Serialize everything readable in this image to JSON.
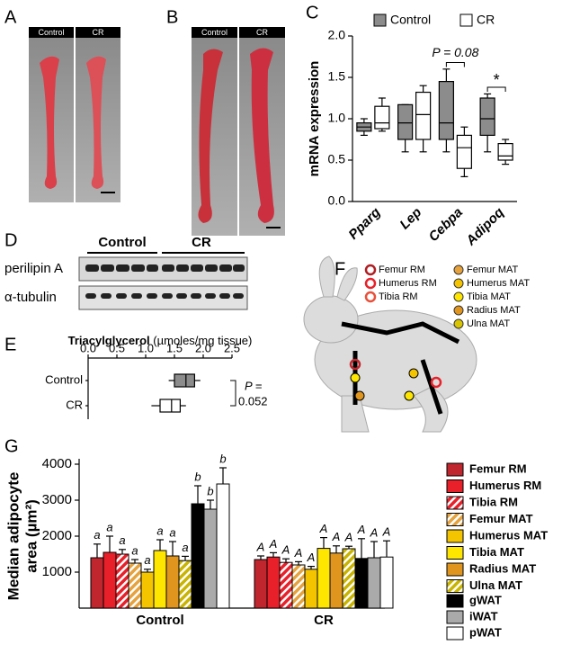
{
  "panel_labels": [
    "A",
    "B",
    "C",
    "D",
    "E",
    "F",
    "G"
  ],
  "photos": {
    "A": [
      "Control",
      "CR"
    ],
    "B": [
      "Control",
      "CR"
    ]
  },
  "blot": {
    "groups": [
      "Control",
      "CR"
    ],
    "rows": [
      "perilipin A",
      "α-tubulin"
    ]
  },
  "skeleton_legend": [
    {
      "name": "Femur RM",
      "color": "#b01e23"
    },
    {
      "name": "Humerus RM",
      "color": "#e8202a"
    },
    {
      "name": "Tibia RM",
      "color": "#e8503a"
    },
    {
      "name": "Femur MAT",
      "color": "#e6a23c"
    },
    {
      "name": "Humerus MAT",
      "color": "#f5c400"
    },
    {
      "name": "Tibia MAT",
      "color": "#ffe600"
    },
    {
      "name": "Radius MAT",
      "color": "#e0961e"
    },
    {
      "name": "Ulna MAT",
      "color": "#d9c400"
    }
  ],
  "chart_data": [
    {
      "type": "box",
      "ylabel": "mRNA expression",
      "categories": [
        "Pparg",
        "Lep",
        "Cebpa",
        "Adipoq"
      ],
      "series": [
        {
          "name": "Control",
          "color": "#8c8c8c",
          "min": [
            0.8,
            0.6,
            0.6,
            0.6
          ],
          "q1": [
            0.85,
            0.75,
            0.75,
            0.8
          ],
          "median": [
            0.9,
            0.95,
            0.95,
            1.0
          ],
          "q3": [
            0.95,
            1.17,
            1.45,
            1.25
          ],
          "max": [
            1.0,
            1.17,
            1.6,
            1.3
          ]
        },
        {
          "name": "CR",
          "color": "#ffffff",
          "min": [
            0.85,
            0.6,
            0.3,
            0.45
          ],
          "q1": [
            0.88,
            0.75,
            0.4,
            0.5
          ],
          "median": [
            0.95,
            1.05,
            0.65,
            0.55
          ],
          "q3": [
            1.15,
            1.32,
            0.8,
            0.7
          ],
          "max": [
            1.25,
            1.4,
            0.9,
            0.75
          ]
        }
      ],
      "ylim": [
        0,
        2
      ],
      "yticks": [
        {
          "value": 0,
          "label": "0.0"
        },
        0.5,
        {
          "value": 1,
          "label": "1.0"
        },
        1.5,
        {
          "value": 2,
          "label": "2.0"
        }
      ],
      "annotations": [
        "P = 0.08",
        "*"
      ]
    },
    {
      "type": "hbox",
      "title": "Triacylglycerol",
      "title_unit": "(µmoles/mg tissue)",
      "categories": [
        "Control",
        "CR"
      ],
      "colors": [
        "#8c8c8c",
        "#ffffff"
      ],
      "min": [
        1.4,
        1.1
      ],
      "q1": [
        1.5,
        1.25
      ],
      "median": [
        1.7,
        1.45
      ],
      "q3": [
        1.85,
        1.6
      ],
      "max": [
        1.95,
        1.7
      ],
      "xlim": [
        0,
        2.5
      ],
      "xticks": [
        {
          "value": 0,
          "label": "0.0"
        },
        0.5,
        {
          "value": 1,
          "label": "1.0"
        },
        1.5,
        {
          "value": 2,
          "label": "2.0"
        },
        2.5
      ],
      "annotations": [
        "P =",
        "0.052"
      ]
    },
    {
      "type": "bar",
      "ylabel": [
        "Median adipocyte",
        "area (µm²)"
      ],
      "categories": [
        "Control",
        "CR"
      ],
      "series": [
        {
          "name": "Femur RM",
          "color": "#c0262d",
          "hatched": false,
          "values": [
            1400,
            1350
          ],
          "errors": [
            380,
            100
          ],
          "letters": [
            "a",
            "A"
          ]
        },
        {
          "name": "Humerus RM",
          "color": "#e8202a",
          "hatched": false,
          "values": [
            1550,
            1420
          ],
          "errors": [
            450,
            120
          ],
          "letters": [
            "a",
            "A"
          ]
        },
        {
          "name": "Tibia RM",
          "color": "#e8202a",
          "hatched": true,
          "values": [
            1500,
            1270
          ],
          "errors": [
            130,
            100
          ],
          "letters": [
            "a",
            "A"
          ]
        },
        {
          "name": "Femur MAT",
          "color": "#e6a23c",
          "hatched": true,
          "values": [
            1250,
            1200
          ],
          "errors": [
            100,
            90
          ],
          "letters": [
            "a",
            "A"
          ]
        },
        {
          "name": "Humerus MAT",
          "color": "#f5c400",
          "hatched": false,
          "values": [
            1000,
            1080
          ],
          "errors": [
            80,
            80
          ],
          "letters": [
            "a",
            "A"
          ]
        },
        {
          "name": "Tibia MAT",
          "color": "#ffe600",
          "hatched": false,
          "values": [
            1600,
            1660
          ],
          "errors": [
            300,
            300
          ],
          "letters": [
            "a",
            "A"
          ]
        },
        {
          "name": "Radius MAT",
          "color": "#e0961e",
          "hatched": false,
          "values": [
            1450,
            1530
          ],
          "errors": [
            400,
            200
          ],
          "letters": [
            "a",
            "A"
          ]
        },
        {
          "name": "Ulna MAT",
          "color": "#c9b400",
          "hatched": true,
          "values": [
            1320,
            1650
          ],
          "errors": [
            120,
            70
          ],
          "letters": [
            "a",
            "A"
          ]
        },
        {
          "name": "gWAT",
          "color": "#000000",
          "hatched": false,
          "values": [
            2900,
            1380
          ],
          "errors": [
            500,
            550
          ],
          "letters": [
            "b",
            "A"
          ]
        },
        {
          "name": "iWAT",
          "color": "#aaaaaa",
          "hatched": false,
          "values": [
            2750,
            1400
          ],
          "errors": [
            250,
            450
          ],
          "letters": [
            "b",
            "A"
          ]
        },
        {
          "name": "pWAT",
          "color": "#ffffff",
          "hatched": false,
          "values": [
            3450,
            1420
          ],
          "errors": [
            450,
            450
          ],
          "letters": [
            "b",
            "A"
          ]
        }
      ],
      "ylim": [
        0,
        4000
      ],
      "yticks": [
        1000,
        2000,
        3000,
        4000
      ]
    }
  ]
}
